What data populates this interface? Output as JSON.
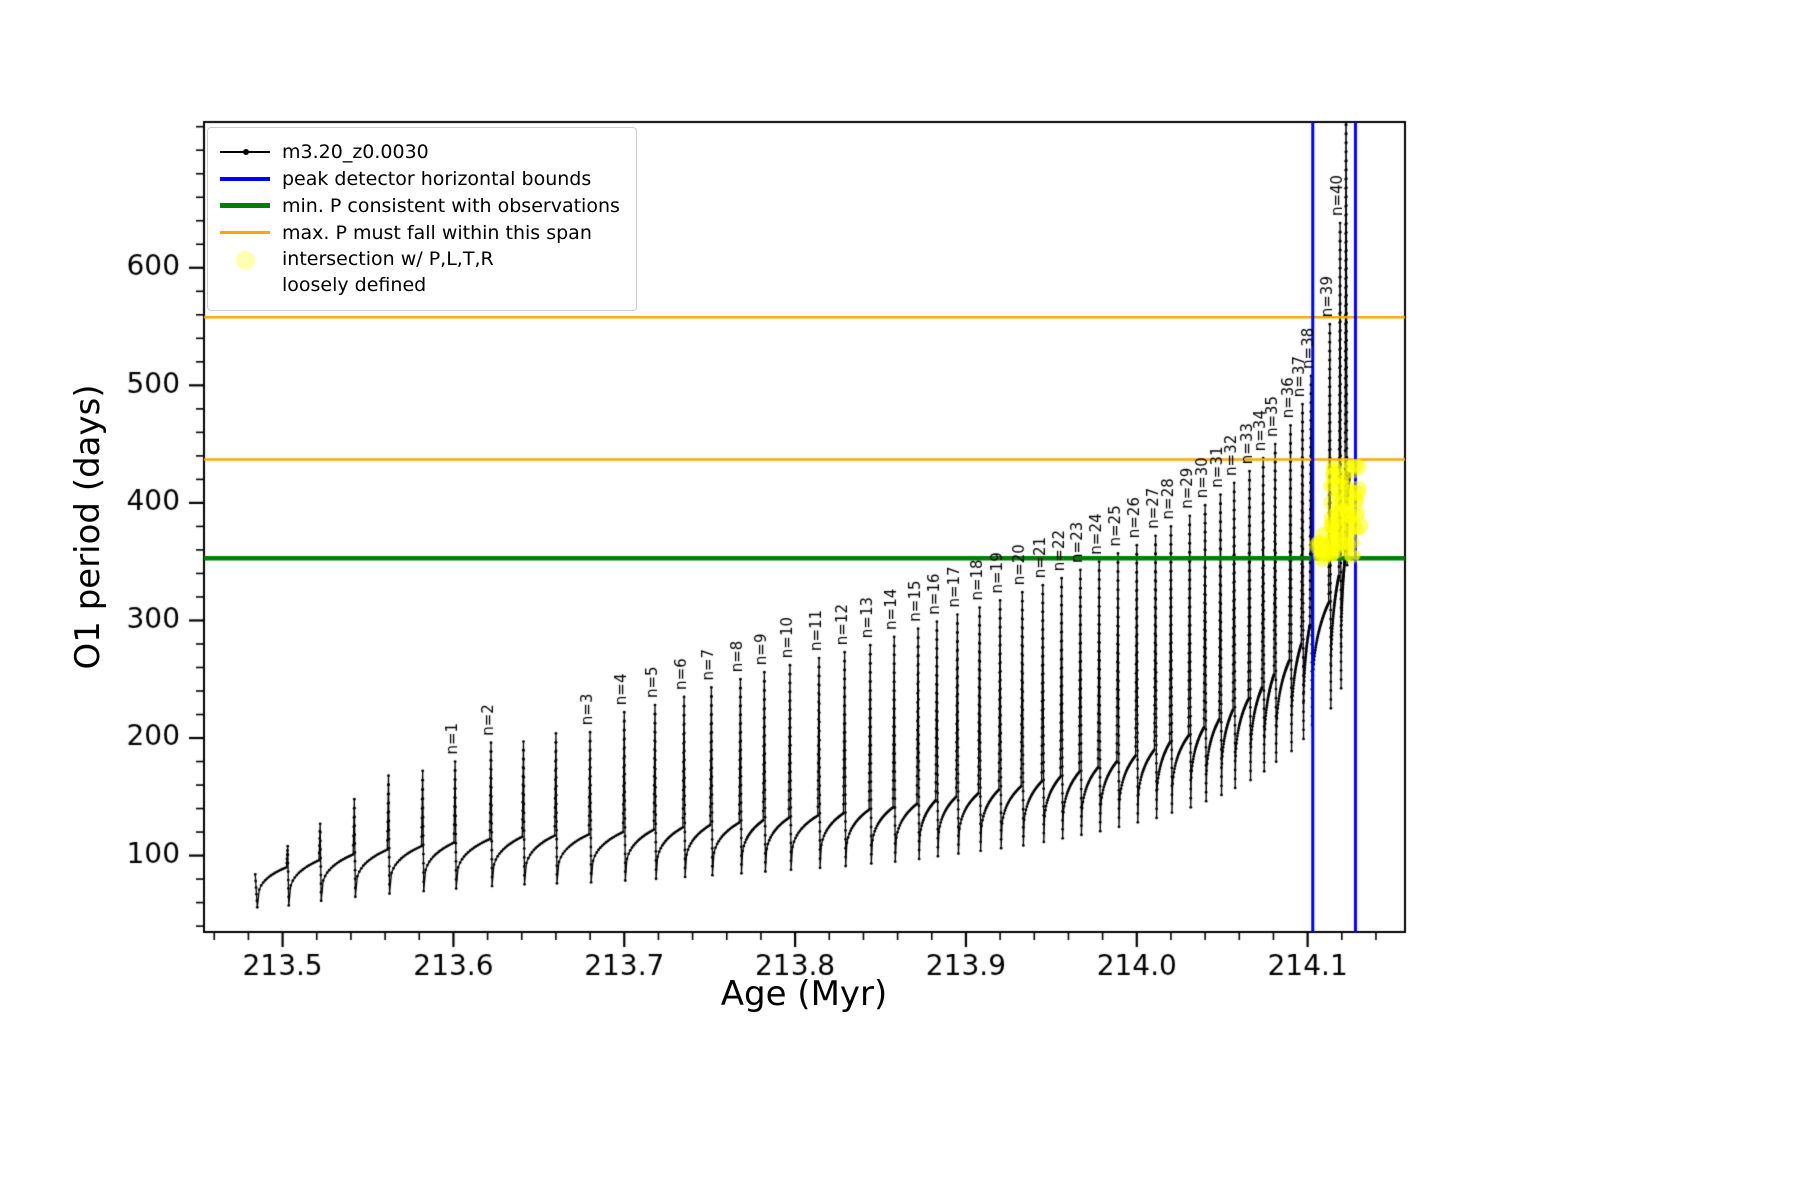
{
  "legend": {
    "items": [
      {
        "swatch": "line-dot",
        "color": "#000000",
        "label": "m3.20_z0.0030"
      },
      {
        "swatch": "line",
        "color": "#0000ff",
        "label": "peak detector horizontal bounds"
      },
      {
        "swatch": "line",
        "color": "#008000",
        "label": "min. P consistent with observations"
      },
      {
        "swatch": "line",
        "color": "#ffa500",
        "label": "max. P must fall within this span"
      },
      {
        "swatch": "circle",
        "color": "#ffffb0",
        "label": "intersection w/ P,L,T,R",
        "label2": "loosely defined"
      }
    ]
  },
  "chart_data": {
    "type": "line",
    "title": "",
    "xlabel": "Age (Myr)",
    "ylabel": "O1 period (days)",
    "xlim": [
      213.454,
      214.157
    ],
    "ylim": [
      35,
      724
    ],
    "xticks": [
      213.5,
      213.6,
      213.7,
      213.8,
      213.9,
      214.0,
      214.1
    ],
    "xtick_labels": [
      "213.5",
      "213.6",
      "213.7",
      "213.8",
      "213.9",
      "214.0",
      "214.1"
    ],
    "yticks": [
      100,
      200,
      300,
      400,
      500,
      600
    ],
    "ytick_labels": [
      "100",
      "200",
      "300",
      "400",
      "500",
      "600"
    ],
    "x_minor_start": 213.46,
    "x_minor_step": 0.02,
    "y_minor_start": 40,
    "y_minor_step": 20,
    "grid": false,
    "legend_position": "upper left",
    "hlines": [
      {
        "y": 558,
        "color": "#ffa500",
        "width": 2.5,
        "meaning": "max. P must fall within this span (upper)"
      },
      {
        "y": 437,
        "color": "#ffa500",
        "width": 2.5,
        "meaning": "max. P must fall within this span (lower)"
      },
      {
        "y": 353,
        "color": "#008000",
        "width": 4.5,
        "meaning": "min. P consistent with observations"
      }
    ],
    "vlines": [
      {
        "x": 214.103,
        "color": "#0000ff",
        "width": 3,
        "meaning": "peak detector left bound"
      },
      {
        "x": 214.128,
        "color": "#0000ff",
        "width": 3,
        "meaning": "peak detector right bound"
      }
    ],
    "series": {
      "name": "m3.20_z0.0030",
      "color": "#000000",
      "start": {
        "x": 213.484,
        "y": 84
      },
      "start_dip": 56,
      "end": {
        "x": 214.1245,
        "y": 425
      },
      "pulses": [
        {
          "x": 213.503,
          "base": 90,
          "peak": 108
        },
        {
          "x": 213.522,
          "base": 96,
          "peak": 127
        },
        {
          "x": 213.542,
          "base": 101,
          "peak": 148
        },
        {
          "x": 213.562,
          "base": 105,
          "peak": 168
        },
        {
          "x": 213.582,
          "base": 108,
          "peak": 172
        },
        {
          "x": 213.601,
          "base": 111,
          "peak": 180,
          "label": "n=1"
        },
        {
          "x": 213.622,
          "base": 114,
          "peak": 196,
          "label": "n=2"
        },
        {
          "x": 213.641,
          "base": 116,
          "peak": 197
        },
        {
          "x": 213.66,
          "base": 117,
          "peak": 204
        },
        {
          "x": 213.68,
          "base": 118,
          "peak": 205,
          "label": "n=3"
        },
        {
          "x": 213.7,
          "base": 120,
          "peak": 222,
          "label": "n=4"
        },
        {
          "x": 213.718,
          "base": 122,
          "peak": 228,
          "label": "n=5"
        },
        {
          "x": 213.735,
          "base": 124,
          "peak": 235,
          "label": "n=6"
        },
        {
          "x": 213.751,
          "base": 126,
          "peak": 243,
          "label": "n=7"
        },
        {
          "x": 213.768,
          "base": 128,
          "peak": 250,
          "label": "n=8"
        },
        {
          "x": 213.782,
          "base": 130,
          "peak": 256,
          "label": "n=9"
        },
        {
          "x": 213.797,
          "base": 132,
          "peak": 262,
          "label": "n=10"
        },
        {
          "x": 213.814,
          "base": 134,
          "peak": 268,
          "label": "n=11"
        },
        {
          "x": 213.829,
          "base": 136,
          "peak": 273,
          "label": "n=12"
        },
        {
          "x": 213.844,
          "base": 139,
          "peak": 279,
          "label": "n=13"
        },
        {
          "x": 213.858,
          "base": 141,
          "peak": 286,
          "label": "n=14"
        },
        {
          "x": 213.872,
          "base": 144,
          "peak": 293,
          "label": "n=15"
        },
        {
          "x": 213.883,
          "base": 147,
          "peak": 299,
          "label": "n=16"
        },
        {
          "x": 213.895,
          "base": 150,
          "peak": 305,
          "label": "n=17"
        },
        {
          "x": 213.908,
          "base": 153,
          "peak": 311,
          "label": "n=18"
        },
        {
          "x": 213.92,
          "base": 156,
          "peak": 317,
          "label": "n=19"
        },
        {
          "x": 213.933,
          "base": 159,
          "peak": 324,
          "label": "n=20"
        },
        {
          "x": 213.945,
          "base": 163,
          "peak": 330,
          "label": "n=21"
        },
        {
          "x": 213.956,
          "base": 167,
          "peak": 336,
          "label": "n=22"
        },
        {
          "x": 213.967,
          "base": 171,
          "peak": 343,
          "label": "n=23"
        },
        {
          "x": 213.978,
          "base": 175,
          "peak": 350,
          "label": "n=24"
        },
        {
          "x": 213.989,
          "base": 180,
          "peak": 357,
          "label": "n=25"
        },
        {
          "x": 214.0,
          "base": 185,
          "peak": 364,
          "label": "n=26"
        },
        {
          "x": 214.011,
          "base": 190,
          "peak": 372,
          "label": "n=27"
        },
        {
          "x": 214.02,
          "base": 196,
          "peak": 380,
          "label": "n=28"
        },
        {
          "x": 214.031,
          "base": 202,
          "peak": 389,
          "label": "n=29"
        },
        {
          "x": 214.04,
          "base": 209,
          "peak": 398,
          "label": "n=30"
        },
        {
          "x": 214.049,
          "base": 216,
          "peak": 407,
          "label": "n=31"
        },
        {
          "x": 214.057,
          "base": 224,
          "peak": 417,
          "label": "n=32"
        },
        {
          "x": 214.066,
          "base": 233,
          "peak": 427,
          "label": "n=33"
        },
        {
          "x": 214.074,
          "base": 243,
          "peak": 438,
          "label": "n=34"
        },
        {
          "x": 214.081,
          "base": 254,
          "peak": 450,
          "label": "n=35"
        },
        {
          "x": 214.09,
          "base": 266,
          "peak": 466,
          "label": "n=36"
        },
        {
          "x": 214.097,
          "base": 280,
          "peak": 484,
          "label": "n=37"
        },
        {
          "x": 214.102,
          "base": 296,
          "peak": 508,
          "label": "n=38"
        },
        {
          "x": 214.113,
          "base": 315,
          "peak": 552,
          "label": "n=39"
        },
        {
          "x": 214.119,
          "base": 338,
          "peak": 638,
          "label": "n=40"
        },
        {
          "x": 214.1225,
          "base": 352,
          "peak": 760,
          "final": true
        }
      ]
    },
    "intersection_blob": {
      "color": "#ffff00",
      "alpha": 0.5,
      "main": {
        "x": [
          214.112,
          214.13
        ],
        "y": [
          352,
          432
        ],
        "count": 75
      },
      "tail": {
        "x": [
          214.1055,
          214.114
        ],
        "y": [
          352,
          372
        ],
        "count": 16
      }
    }
  }
}
